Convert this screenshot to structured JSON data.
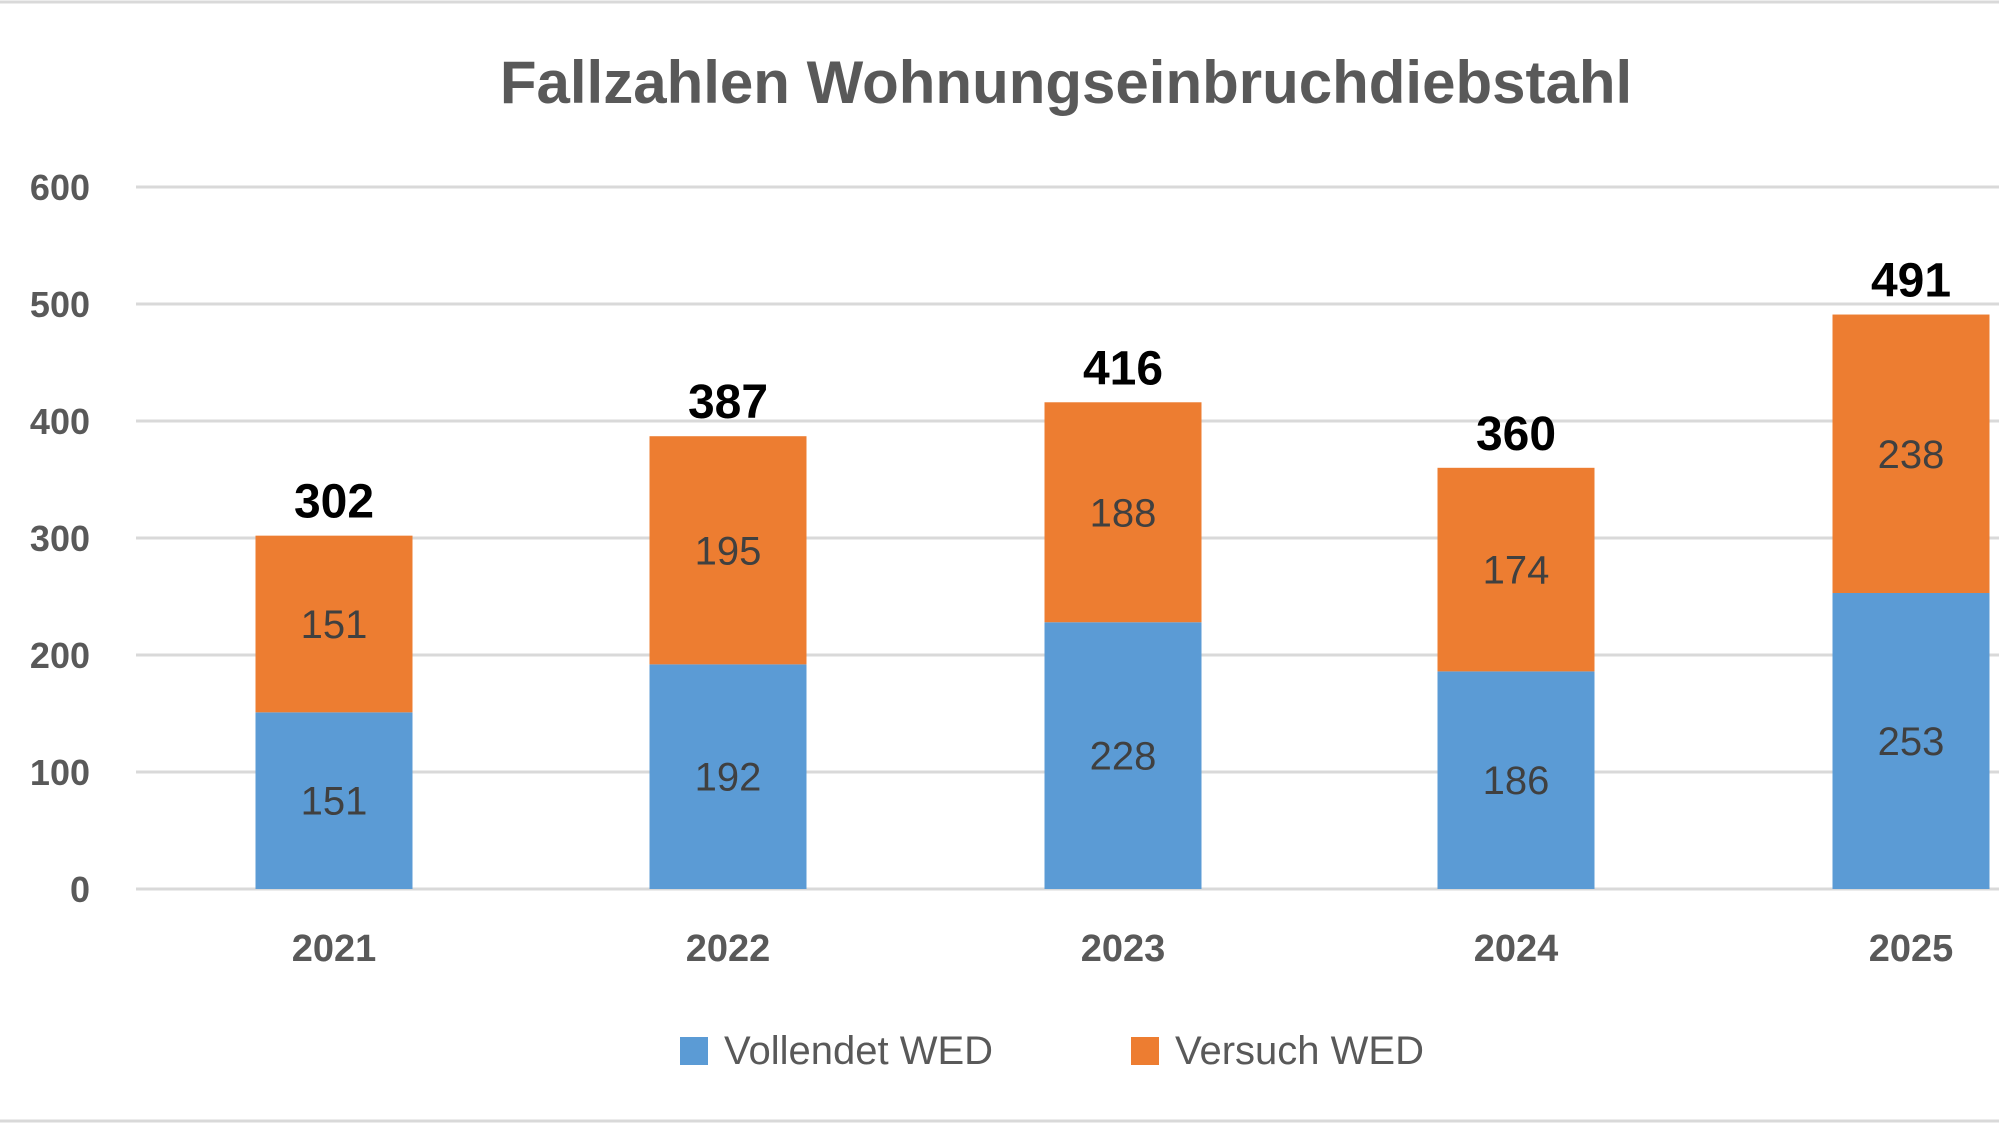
{
  "chart_data": {
    "type": "bar",
    "stacked": true,
    "title": "Fallzahlen Wohnungseinbruchdiebstahl",
    "xlabel": "",
    "ylabel": "",
    "categories": [
      "2021",
      "2022",
      "2023",
      "2024",
      "2025"
    ],
    "series": [
      {
        "name": "Vollendet WED",
        "color": "#5B9BD5",
        "values": [
          151,
          192,
          228,
          186,
          253
        ]
      },
      {
        "name": "Versuch WED",
        "color": "#ED7D31",
        "values": [
          151,
          195,
          188,
          174,
          238
        ]
      }
    ],
    "totals": [
      302,
      387,
      416,
      360,
      491
    ],
    "ylim": [
      0,
      600
    ],
    "yticks": [
      0,
      100,
      200,
      300,
      400,
      500,
      600
    ],
    "grid": true,
    "legend": "bottom"
  }
}
